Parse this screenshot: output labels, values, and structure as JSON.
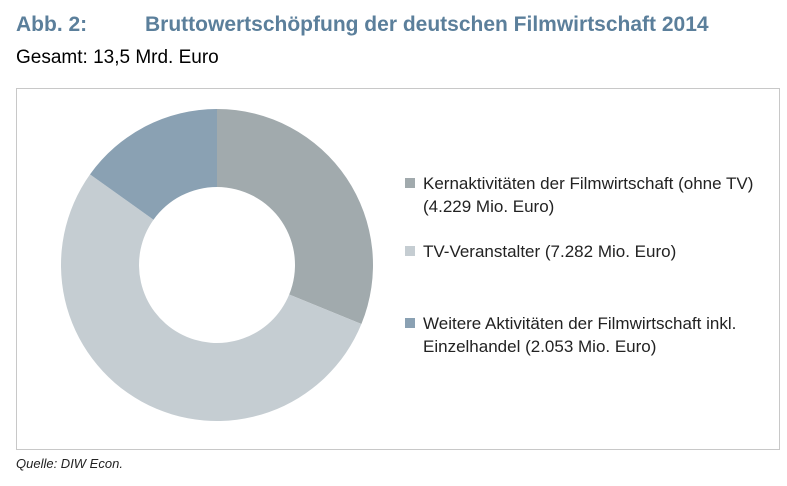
{
  "figure": {
    "label": "Abb. 2:",
    "title": "Bruttowertschöpfung der deutschen Filmwirtschaft 2014",
    "subtitle": "Gesamt: 13,5 Mrd. Euro"
  },
  "source": "Quelle: DIW Econ.",
  "colors": {
    "heading": "#5b7f9b",
    "kern": "#a1aaad",
    "tv": "#c5cdd2",
    "weitere": "#8aa1b3",
    "frame": "#c8c8c8"
  },
  "chart_data": {
    "type": "pie",
    "style": "donut",
    "title": "Bruttowertschöpfung der deutschen Filmwirtschaft 2014",
    "subtitle": "Gesamt: 13,5 Mrd. Euro",
    "units": "Mio. Euro",
    "start_angle": "12 o'clock, clockwise",
    "legend_position": "right",
    "slices": [
      {
        "label": "Kernaktivitäten der Filmwirtschaft (ohne TV) (4.229 Mio. Euro)",
        "value": 4229,
        "color": "#a1aaad"
      },
      {
        "label": "TV-Veranstalter (7.282 Mio. Euro)",
        "value": 7282,
        "color": "#c5cdd2"
      },
      {
        "label": "Weitere Aktivitäten der Filmwirtschaft inkl.  Einzelhandel (2.053 Mio. Euro)",
        "value": 2053,
        "color": "#8aa1b3"
      }
    ]
  }
}
